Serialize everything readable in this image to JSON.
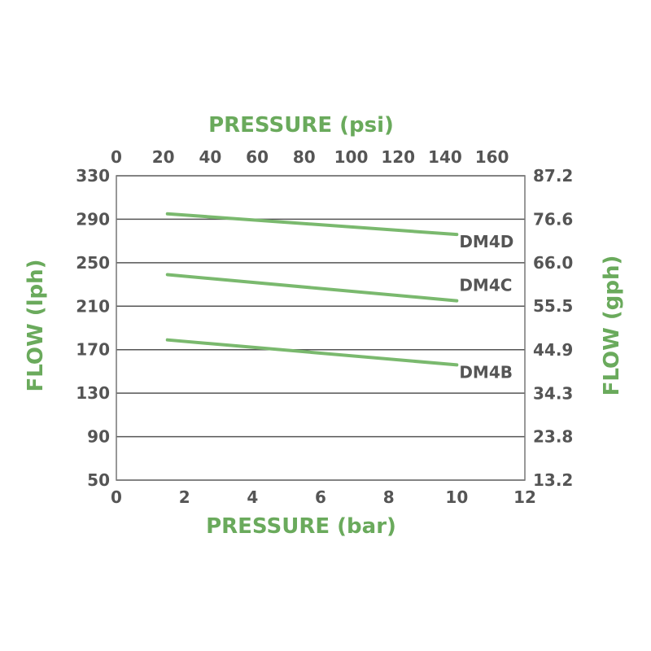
{
  "chart_data": {
    "type": "line",
    "x_bottom": {
      "label": "PRESSURE (bar)",
      "range": [
        0,
        12
      ],
      "ticks": [
        "0",
        "2",
        "4",
        "6",
        "8",
        "10",
        "12"
      ]
    },
    "x_top": {
      "label": "PRESSURE (psi)",
      "range": [
        0,
        174
      ],
      "ticks": [
        "0",
        "20",
        "40",
        "60",
        "80",
        "100",
        "120",
        "140",
        "160"
      ]
    },
    "y_left": {
      "label": "FLOW (lph)",
      "range": [
        50,
        330
      ],
      "ticks": [
        "330",
        "290",
        "250",
        "210",
        "170",
        "130",
        "90",
        "50"
      ]
    },
    "y_right": {
      "label": "FLOW (gph)",
      "range": [
        13.2,
        87.2
      ],
      "ticks": [
        "87.2",
        "76.6",
        "66.0",
        "55.5",
        "44.9",
        "34.3",
        "23.8",
        "13.2"
      ]
    },
    "grid": "horizontal",
    "series": [
      {
        "name": "DM4D",
        "x": [
          1.5,
          10
        ],
        "y": [
          295,
          276
        ]
      },
      {
        "name": "DM4C",
        "x": [
          1.5,
          10
        ],
        "y": [
          239,
          215
        ]
      },
      {
        "name": "DM4B",
        "x": [
          1.5,
          10
        ],
        "y": [
          179,
          156
        ]
      }
    ]
  },
  "colors": {
    "series_line": "#7ab96e",
    "axis_title": "#6aaa5c",
    "text": "#555555"
  }
}
